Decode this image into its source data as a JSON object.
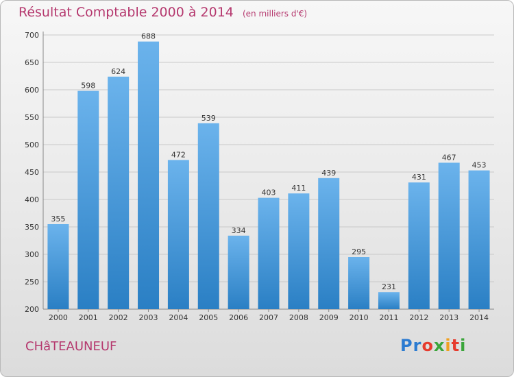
{
  "title": "Résultat Comptable 2000 à 2014",
  "subtitle": "(en milliers d'€)",
  "city": "CHâTEAUNEUF",
  "logo": {
    "letters": [
      "P",
      "r",
      "o",
      "x",
      "i",
      "t",
      "i"
    ],
    "colors": [
      "#2b7bd1",
      "#2b7bd1",
      "#e63b2e",
      "#3aa53a",
      "#f0a020",
      "#e63b2e",
      "#3aa53a"
    ]
  },
  "colors": {
    "bar_top": "#6bb3ec",
    "bar_bottom": "#2a7fc4",
    "title": "#b5386e"
  },
  "chart_data": {
    "type": "bar",
    "categories": [
      "2000",
      "2001",
      "2002",
      "2003",
      "2004",
      "2005",
      "2006",
      "2007",
      "2008",
      "2009",
      "2010",
      "2011",
      "2012",
      "2013",
      "2014"
    ],
    "values": [
      355,
      598,
      624,
      688,
      472,
      539,
      334,
      403,
      411,
      439,
      295,
      231,
      431,
      467,
      453
    ],
    "ylim": [
      200,
      700
    ],
    "yticks": [
      200,
      250,
      300,
      350,
      400,
      450,
      500,
      550,
      600,
      650,
      700
    ],
    "grid": true
  }
}
